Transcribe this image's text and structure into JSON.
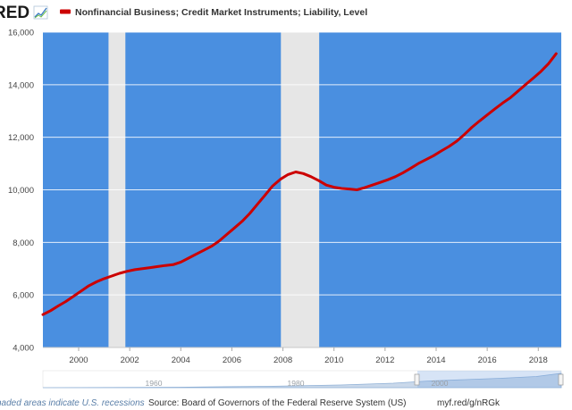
{
  "logo": {
    "text": "RED"
  },
  "legend": {
    "label": "Nonfinancial Business; Credit Market Instruments; Liability, Level",
    "color": "#cc0000"
  },
  "colors": {
    "plot_bg": "#4a8fe0",
    "recession": "#e6e6e6",
    "line": "#cc0000",
    "grid": "#ffffff"
  },
  "footer": {
    "note": "haded areas indicate U.S. recessions",
    "source": "Source: Board of Governors of the Federal Reserve System (US)",
    "link": "myf.red/g/nRGk"
  },
  "navigator": {
    "labels": [
      "1960",
      "1980",
      "2000"
    ]
  },
  "chart_data": {
    "type": "line",
    "xlim": [
      1998.6,
      2018.9
    ],
    "ylim": [
      4000,
      16000
    ],
    "grid": true,
    "x_ticks": [
      2000,
      2002,
      2004,
      2006,
      2008,
      2010,
      2012,
      2014,
      2016,
      2018
    ],
    "y_ticks": [
      4000,
      6000,
      8000,
      10000,
      12000,
      14000,
      16000
    ],
    "y_tick_labels": [
      "4,000",
      "6,000",
      "8,000",
      "10,000",
      "12,000",
      "14,000",
      "16,000"
    ],
    "recessions": [
      [
        2001.17,
        2001.83
      ],
      [
        2007.92,
        2009.42
      ]
    ],
    "series": [
      {
        "name": "Nonfinancial Business; Credit Market Instruments; Liability, Level",
        "x": [
          1998.6,
          1998.9,
          1999.2,
          1999.5,
          1999.8,
          2000.1,
          2000.4,
          2000.7,
          2001.0,
          2001.3,
          2001.6,
          2001.9,
          2002.2,
          2002.5,
          2002.8,
          2003.1,
          2003.4,
          2003.7,
          2004.0,
          2004.3,
          2004.6,
          2004.9,
          2005.2,
          2005.5,
          2005.8,
          2006.1,
          2006.4,
          2006.7,
          2007.0,
          2007.3,
          2007.6,
          2007.9,
          2008.2,
          2008.5,
          2008.8,
          2009.1,
          2009.4,
          2009.7,
          2010.0,
          2010.3,
          2010.6,
          2010.9,
          2011.2,
          2011.5,
          2011.8,
          2012.1,
          2012.4,
          2012.7,
          2013.0,
          2013.3,
          2013.6,
          2013.9,
          2014.2,
          2014.5,
          2014.8,
          2015.1,
          2015.4,
          2015.7,
          2016.0,
          2016.3,
          2016.6,
          2016.9,
          2017.2,
          2017.5,
          2017.8,
          2018.1,
          2018.4,
          2018.7
        ],
        "y": [
          5250,
          5400,
          5580,
          5750,
          5950,
          6150,
          6350,
          6500,
          6620,
          6720,
          6820,
          6900,
          6960,
          7000,
          7040,
          7080,
          7120,
          7150,
          7250,
          7400,
          7550,
          7700,
          7850,
          8050,
          8300,
          8550,
          8800,
          9100,
          9450,
          9800,
          10150,
          10400,
          10580,
          10680,
          10620,
          10500,
          10350,
          10180,
          10100,
          10050,
          10030,
          10000,
          10080,
          10180,
          10280,
          10380,
          10500,
          10650,
          10820,
          11000,
          11150,
          11300,
          11480,
          11650,
          11850,
          12100,
          12380,
          12620,
          12850,
          13080,
          13300,
          13500,
          13750,
          14000,
          14250,
          14500,
          14800,
          15180
        ]
      }
    ]
  }
}
